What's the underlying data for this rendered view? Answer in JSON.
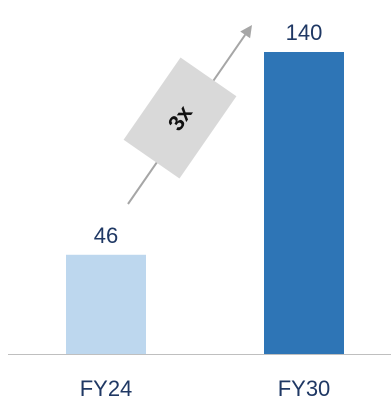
{
  "chart_data": {
    "type": "bar",
    "categories": [
      "FY24",
      "FY30"
    ],
    "values": [
      46,
      140
    ],
    "data_labels": [
      "46",
      "140"
    ],
    "bar_colors": [
      "#BDD7EE",
      "#2E75B6"
    ],
    "ylim": [
      0,
      160
    ],
    "grid": false,
    "legend": "none",
    "annotation": {
      "text": "3x",
      "from": "FY24",
      "to": "FY30",
      "box_color": "#D9D9D9",
      "arrow_color": "#A6A6A6"
    },
    "axis_color": "#BFBFBF",
    "label_color": "#1F3864"
  }
}
